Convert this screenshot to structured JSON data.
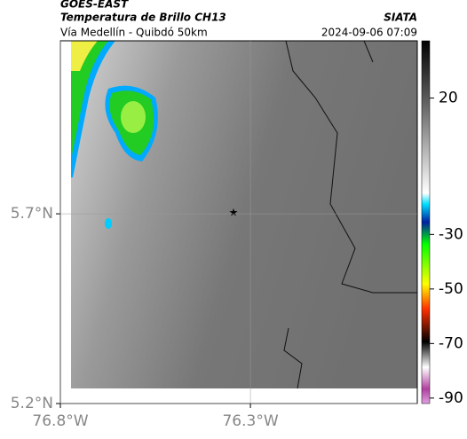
{
  "header": {
    "source": "GOES-EAST",
    "product": "Temperatura de Brillo CH13",
    "agency": "SIATA",
    "route": "Vía Medellín - Quibdó 50km",
    "datetime": "2024-09-06 07:09"
  },
  "map": {
    "latlim": [
      5.2,
      6.156
    ],
    "lonlim": [
      -76.8,
      -75.861
    ],
    "latticks": [
      {
        "value": 5.7,
        "label": "5.7°N"
      },
      {
        "value": 5.2,
        "label": "5.2°N"
      }
    ],
    "lonticks": [
      {
        "value": -76.8,
        "label": "76.8°W"
      },
      {
        "value": -76.3,
        "label": "76.3°W"
      }
    ]
  },
  "colorbar": {
    "lim": [
      -92,
      41
    ],
    "ticks": [
      20,
      -30,
      -50,
      -70,
      -90
    ]
  }
}
